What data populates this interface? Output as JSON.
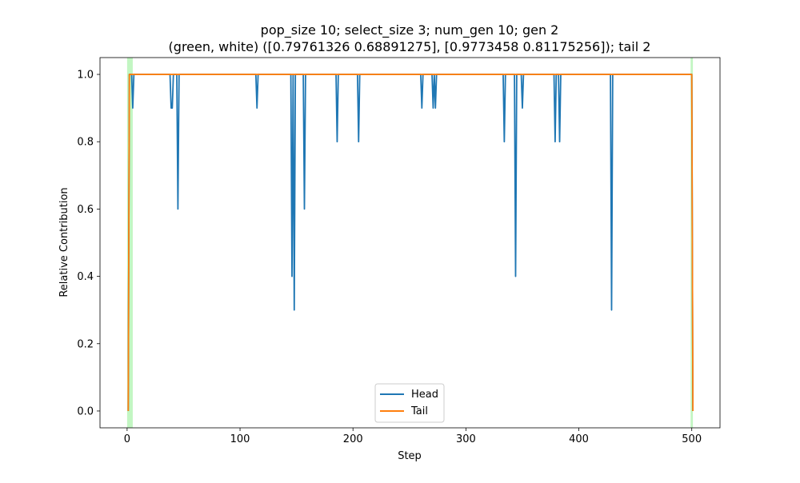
{
  "chart_data": {
    "type": "line",
    "title_line1": "pop_size 10; select_size 3; num_gen 10; gen 2",
    "title_line2": "(green, white) ([0.79761326 0.68891275], [0.9773458  0.81175256]); tail 2",
    "xlabel": "Step",
    "ylabel": "Relative Contribution",
    "xlim": [
      -24,
      525
    ],
    "ylim": [
      -0.05,
      1.05
    ],
    "xticks": [
      0,
      100,
      200,
      300,
      400,
      500
    ],
    "yticks": [
      0.0,
      0.2,
      0.4,
      0.6,
      0.8,
      1.0
    ],
    "xtick_labels": [
      "0",
      "100",
      "200",
      "300",
      "400",
      "500"
    ],
    "ytick_labels": [
      "0.0",
      "0.2",
      "0.4",
      "0.6",
      "0.8",
      "1.0"
    ],
    "legend_position": "lower center",
    "highlight_color": "#90ee90",
    "highlight_regions": [
      [
        0,
        5
      ],
      [
        499,
        501
      ]
    ],
    "series": [
      {
        "name": "Head",
        "color": "#1f77b4",
        "default": 1.0,
        "x_start": 1,
        "x_end": 501,
        "start_value": 0.0,
        "end_value": 0.0,
        "dips": [
          [
            5,
            0.9
          ],
          [
            39,
            0.9
          ],
          [
            40,
            0.9
          ],
          [
            45,
            0.6
          ],
          [
            115,
            0.9
          ],
          [
            146,
            0.4
          ],
          [
            148,
            0.3
          ],
          [
            157,
            0.6
          ],
          [
            186,
            0.8
          ],
          [
            205,
            0.8
          ],
          [
            261,
            0.9
          ],
          [
            271,
            0.9
          ],
          [
            273,
            0.9
          ],
          [
            334,
            0.8
          ],
          [
            344,
            0.4
          ],
          [
            350,
            0.9
          ],
          [
            379,
            0.8
          ],
          [
            383,
            0.8
          ],
          [
            429,
            0.3
          ]
        ]
      },
      {
        "name": "Tail",
        "color": "#ff7f0e",
        "default": 1.0,
        "x_start": 1,
        "x_end": 501,
        "start_value": 0.0,
        "end_value": 0.0,
        "dips": []
      }
    ]
  }
}
